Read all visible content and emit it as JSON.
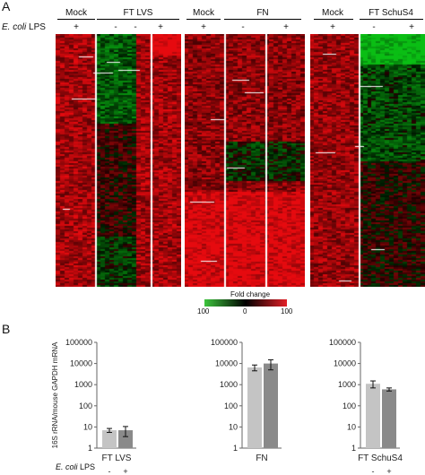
{
  "panels": {
    "a": "A",
    "b": "B"
  },
  "heatmap": {
    "row_label_italic": "E. coli",
    "row_label_rest": " LPS",
    "groups": [
      {
        "key": "lvs",
        "mock": "Mock",
        "treat": "FT LVS",
        "signs": [
          "+",
          "-",
          "-",
          "+"
        ]
      },
      {
        "key": "fn",
        "mock": "Mock",
        "treat": "FN",
        "signs": [
          "+",
          "-",
          "+"
        ]
      },
      {
        "key": "schu",
        "mock": "Mock",
        "treat": "FT SchuS4",
        "signs": [
          "+",
          "-",
          "+"
        ]
      }
    ],
    "colorbar": {
      "title": "Fold change",
      "left": "100",
      "mid": "0",
      "right": "100",
      "colors": [
        "#3cc43c",
        "#000000",
        "#e21f26"
      ]
    }
  },
  "chart_data": [
    {
      "type": "bar",
      "title": "",
      "xlabel": "FT LVS",
      "ylabel": "16S rRNA/mouse GAPDH mRNA",
      "yscale": "log",
      "ylim": [
        1,
        100000
      ],
      "yticks": [
        "1",
        "10",
        "100",
        "1000",
        "10000",
        "100000"
      ],
      "categories": [
        "-",
        "+"
      ],
      "values": [
        7,
        7
      ],
      "errors": [
        1.5,
        3.5
      ],
      "colors": [
        "#c4c4c4",
        "#8a8a8a"
      ]
    },
    {
      "type": "bar",
      "title": "",
      "xlabel": "FN",
      "ylabel": "",
      "yscale": "log",
      "ylim": [
        1,
        100000
      ],
      "yticks": [
        "1",
        "10",
        "100",
        "1000",
        "10000",
        "100000"
      ],
      "categories": [
        "",
        ""
      ],
      "values": [
        6500,
        10000
      ],
      "errors": [
        2000,
        5000
      ],
      "colors": [
        "#c4c4c4",
        "#8a8a8a"
      ]
    },
    {
      "type": "bar",
      "title": "",
      "xlabel": "FT SchuS4",
      "ylabel": "",
      "yscale": "log",
      "ylim": [
        1,
        100000
      ],
      "yticks": [
        "1",
        "10",
        "100",
        "1000",
        "10000",
        "100000"
      ],
      "categories": [
        "-",
        "+"
      ],
      "values": [
        1100,
        600
      ],
      "errors": [
        400,
        100
      ],
      "colors": [
        "#c4c4c4",
        "#8a8a8a"
      ]
    }
  ],
  "bottom_row_label_italic": "E. coli",
  "bottom_row_label_rest": " LPS"
}
